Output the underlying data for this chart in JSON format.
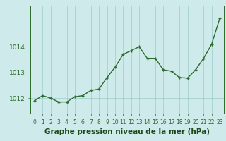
{
  "x": [
    0,
    1,
    2,
    3,
    4,
    5,
    6,
    7,
    8,
    9,
    10,
    11,
    12,
    13,
    14,
    15,
    16,
    17,
    18,
    19,
    20,
    21,
    22,
    23
  ],
  "y": [
    1011.9,
    1012.1,
    1012.0,
    1011.85,
    1011.85,
    1012.05,
    1012.1,
    1012.3,
    1012.35,
    1012.8,
    1013.2,
    1013.7,
    1013.85,
    1014.0,
    1013.55,
    1013.55,
    1013.1,
    1013.05,
    1012.8,
    1012.78,
    1013.1,
    1013.55,
    1014.1,
    1015.1
  ],
  "line_color": "#2d6a2d",
  "marker": "+",
  "marker_size": 3.5,
  "marker_linewidth": 1.0,
  "line_width": 1.0,
  "background_color": "#ceeaea",
  "grid_color": "#99cccc",
  "xlabel": "Graphe pression niveau de la mer (hPa)",
  "xlabel_fontsize": 7.5,
  "xlabel_color": "#1a4a1a",
  "yticks": [
    1012,
    1013,
    1014
  ],
  "ylim": [
    1011.4,
    1015.6
  ],
  "xlim": [
    -0.5,
    23.5
  ],
  "tick_color": "#2d6a2d",
  "ytick_fontsize": 6.5,
  "xtick_fontsize": 5.5,
  "spine_color": "#2d6a2d"
}
